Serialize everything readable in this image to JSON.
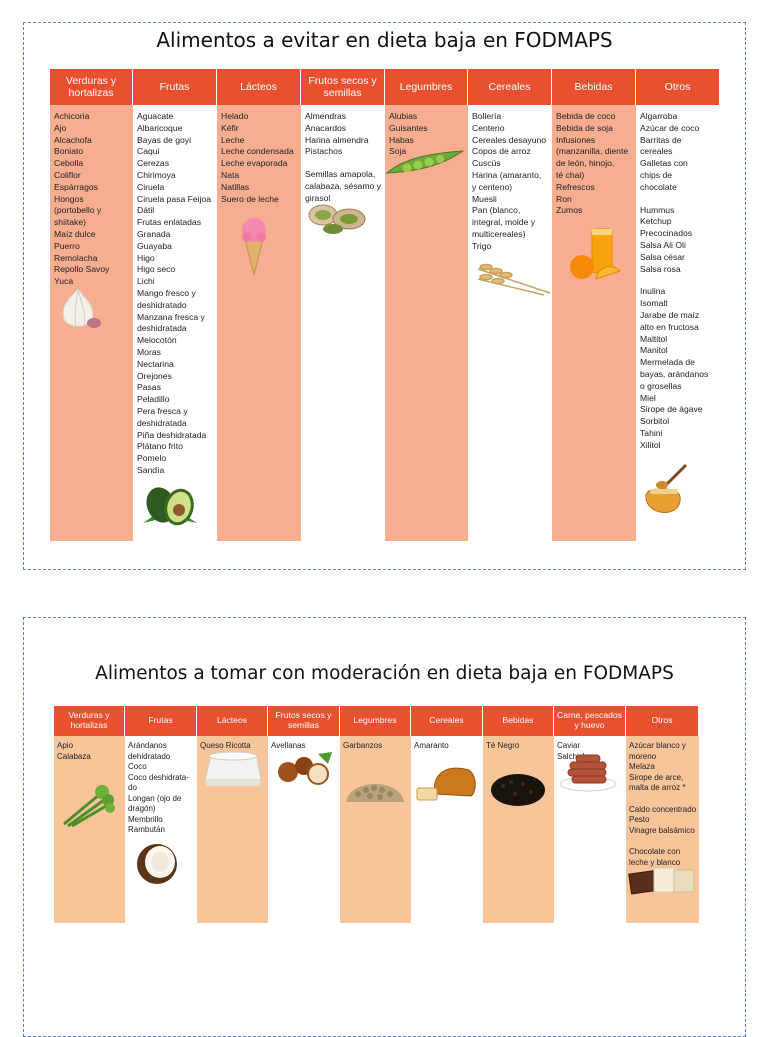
{
  "avoid": {
    "title": "Alimentos a evitar en dieta baja en FODMAPS",
    "columns": [
      {
        "header": "Verduras y\nhortalizas",
        "items": [
          "Achicoria",
          "Ajo",
          "Alcachofa",
          "Boniato",
          "Cebolla",
          "Coliflor",
          "Espárragos",
          "Hongos\n(portobello y\nshiitake)",
          "Maíz dulce",
          "Puerro",
          "Remolacha",
          "Repollo Savoy",
          "Yuca"
        ],
        "illustration": "garlic-icon"
      },
      {
        "header": "Frutas",
        "items": [
          "Aguacate",
          "Albaricoque",
          "Bayas de goyi",
          "Caqui",
          "Cerezas",
          "Chirimoya",
          "Ciruela",
          "Ciruela pasa Feijoa",
          "Dátil",
          "Frutas enlatadas",
          "Granada",
          "Guayaba",
          "Higo",
          "Higo seco",
          "Lichi",
          "Mango fresco y\ndeshidratado",
          "Manzana fresca y\ndeshidratada",
          "Melocotón",
          "Moras",
          "Nectarina",
          "Orejones",
          "Pasas",
          "Peladillo",
          "Pera fresca y\ndeshidratada",
          "Piña deshidratada",
          "Plátano frito",
          "Pomelo",
          "Sandía"
        ],
        "illustration": "avocado-icon"
      },
      {
        "header": "Lácteos",
        "items": [
          "Helado",
          "Kéfir",
          "Leche",
          "Leche condensada",
          "Leche evaporada",
          "Nata",
          "Natillas",
          "Suero de leche"
        ],
        "illustration": "ice-cream-icon"
      },
      {
        "header": "Frutos secos y\nsemillas",
        "items": [
          "Almendras",
          "Anacardos",
          "Harina almendra",
          "Pistachos",
          "",
          "Semillas amapola,\ncalabaza, sésamo y\ngirasol"
        ],
        "illustration": "pistachio-icon"
      },
      {
        "header": "Legumbres",
        "items": [
          "Alubias",
          "Guisantes",
          "Habas",
          "Soja"
        ],
        "illustration": "peas-icon"
      },
      {
        "header": "Cereales",
        "items": [
          "Bollería",
          "Centeno",
          "Cereales desayuno",
          "Copos de arroz",
          "Cuscús",
          "Harina (amaranto,\ny centeno)",
          "Muesli",
          "Pan (blanco,\nintegral, molde y\nmulticereales)",
          "Trigo"
        ],
        "illustration": "wheat-icon"
      },
      {
        "header": "Bebidas",
        "items": [
          "Bebida de coco",
          "Bebida de soja",
          "Infusiones\n(manzanilla, diente\nde león, hinojo,\nté chai)",
          "Refrescos",
          "Ron",
          "Zumos"
        ],
        "illustration": "orange-juice-icon"
      },
      {
        "header": "Otros",
        "items": [
          "Algarroba",
          "Azúcar de coco",
          "Barritas de\ncereales",
          "Galletas con\nchips de\nchocolate",
          "",
          "Hummus",
          "Ketchup",
          "Precocinados",
          "Salsa Ali Oli",
          "Salsa césar",
          "Salsa rosa",
          "",
          "Inulina",
          "Isomalt",
          "Jarabe de maíz\nalto en fructosa",
          "Maltitol",
          "Manitol",
          "Mermelada de\nbayas, arándanos\no grosellas",
          "Miel",
          "Sirope de ágave",
          "Sorbitol",
          "Tahini",
          "Xilitol"
        ],
        "illustration": "honey-icon"
      }
    ]
  },
  "moderate": {
    "title": "Alimentos a tomar con moderación en dieta baja en FODMAPS",
    "columns": [
      {
        "header": "Verduras y\nhortalizas",
        "items": [
          "Apio",
          "Calabaza"
        ],
        "illustration": "celery-icon"
      },
      {
        "header": "Frutas",
        "items": [
          "Arándanos\ndehidratado",
          "Coco",
          "Coco deshidrata-\ndo",
          "Longan (ojo de\ndragón)",
          "Membrillo",
          "Rambután"
        ],
        "illustration": "coconut-icon"
      },
      {
        "header": "Lácteos",
        "items": [
          "Queso Ricotta"
        ],
        "illustration": "ricotta-icon"
      },
      {
        "header": "Frutos secos y\nsemillas",
        "items": [
          "Avellanas"
        ],
        "illustration": "hazelnut-icon"
      },
      {
        "header": "Legumbres",
        "items": [
          "Garbanzos"
        ],
        "illustration": "chickpeas-icon"
      },
      {
        "header": "Cereales",
        "items": [
          "Amaranto"
        ],
        "illustration": "bread-icon"
      },
      {
        "header": "Bebidas",
        "items": [
          "Té Negro"
        ],
        "illustration": "black-tea-icon"
      },
      {
        "header": "Carne, pescados\ny huevo",
        "items": [
          "Caviar",
          "Salchichas"
        ],
        "illustration": "sausages-icon"
      },
      {
        "header": "Otros",
        "items": [
          "Azúcar blanco y\nmoreno",
          "Melaza",
          "Sirope de arce,\nmalta de arroz *",
          "",
          "Caldo concentrado",
          "Pesto",
          "Vinagre balsámico",
          "",
          "Chocolate con\nleche y blanco"
        ],
        "illustration": "chocolate-icon"
      }
    ]
  },
  "colors": {
    "header": "#e85030",
    "shade1": "#f7ad90",
    "shade2": "#f8c59a",
    "border": "#5a7fbf"
  }
}
